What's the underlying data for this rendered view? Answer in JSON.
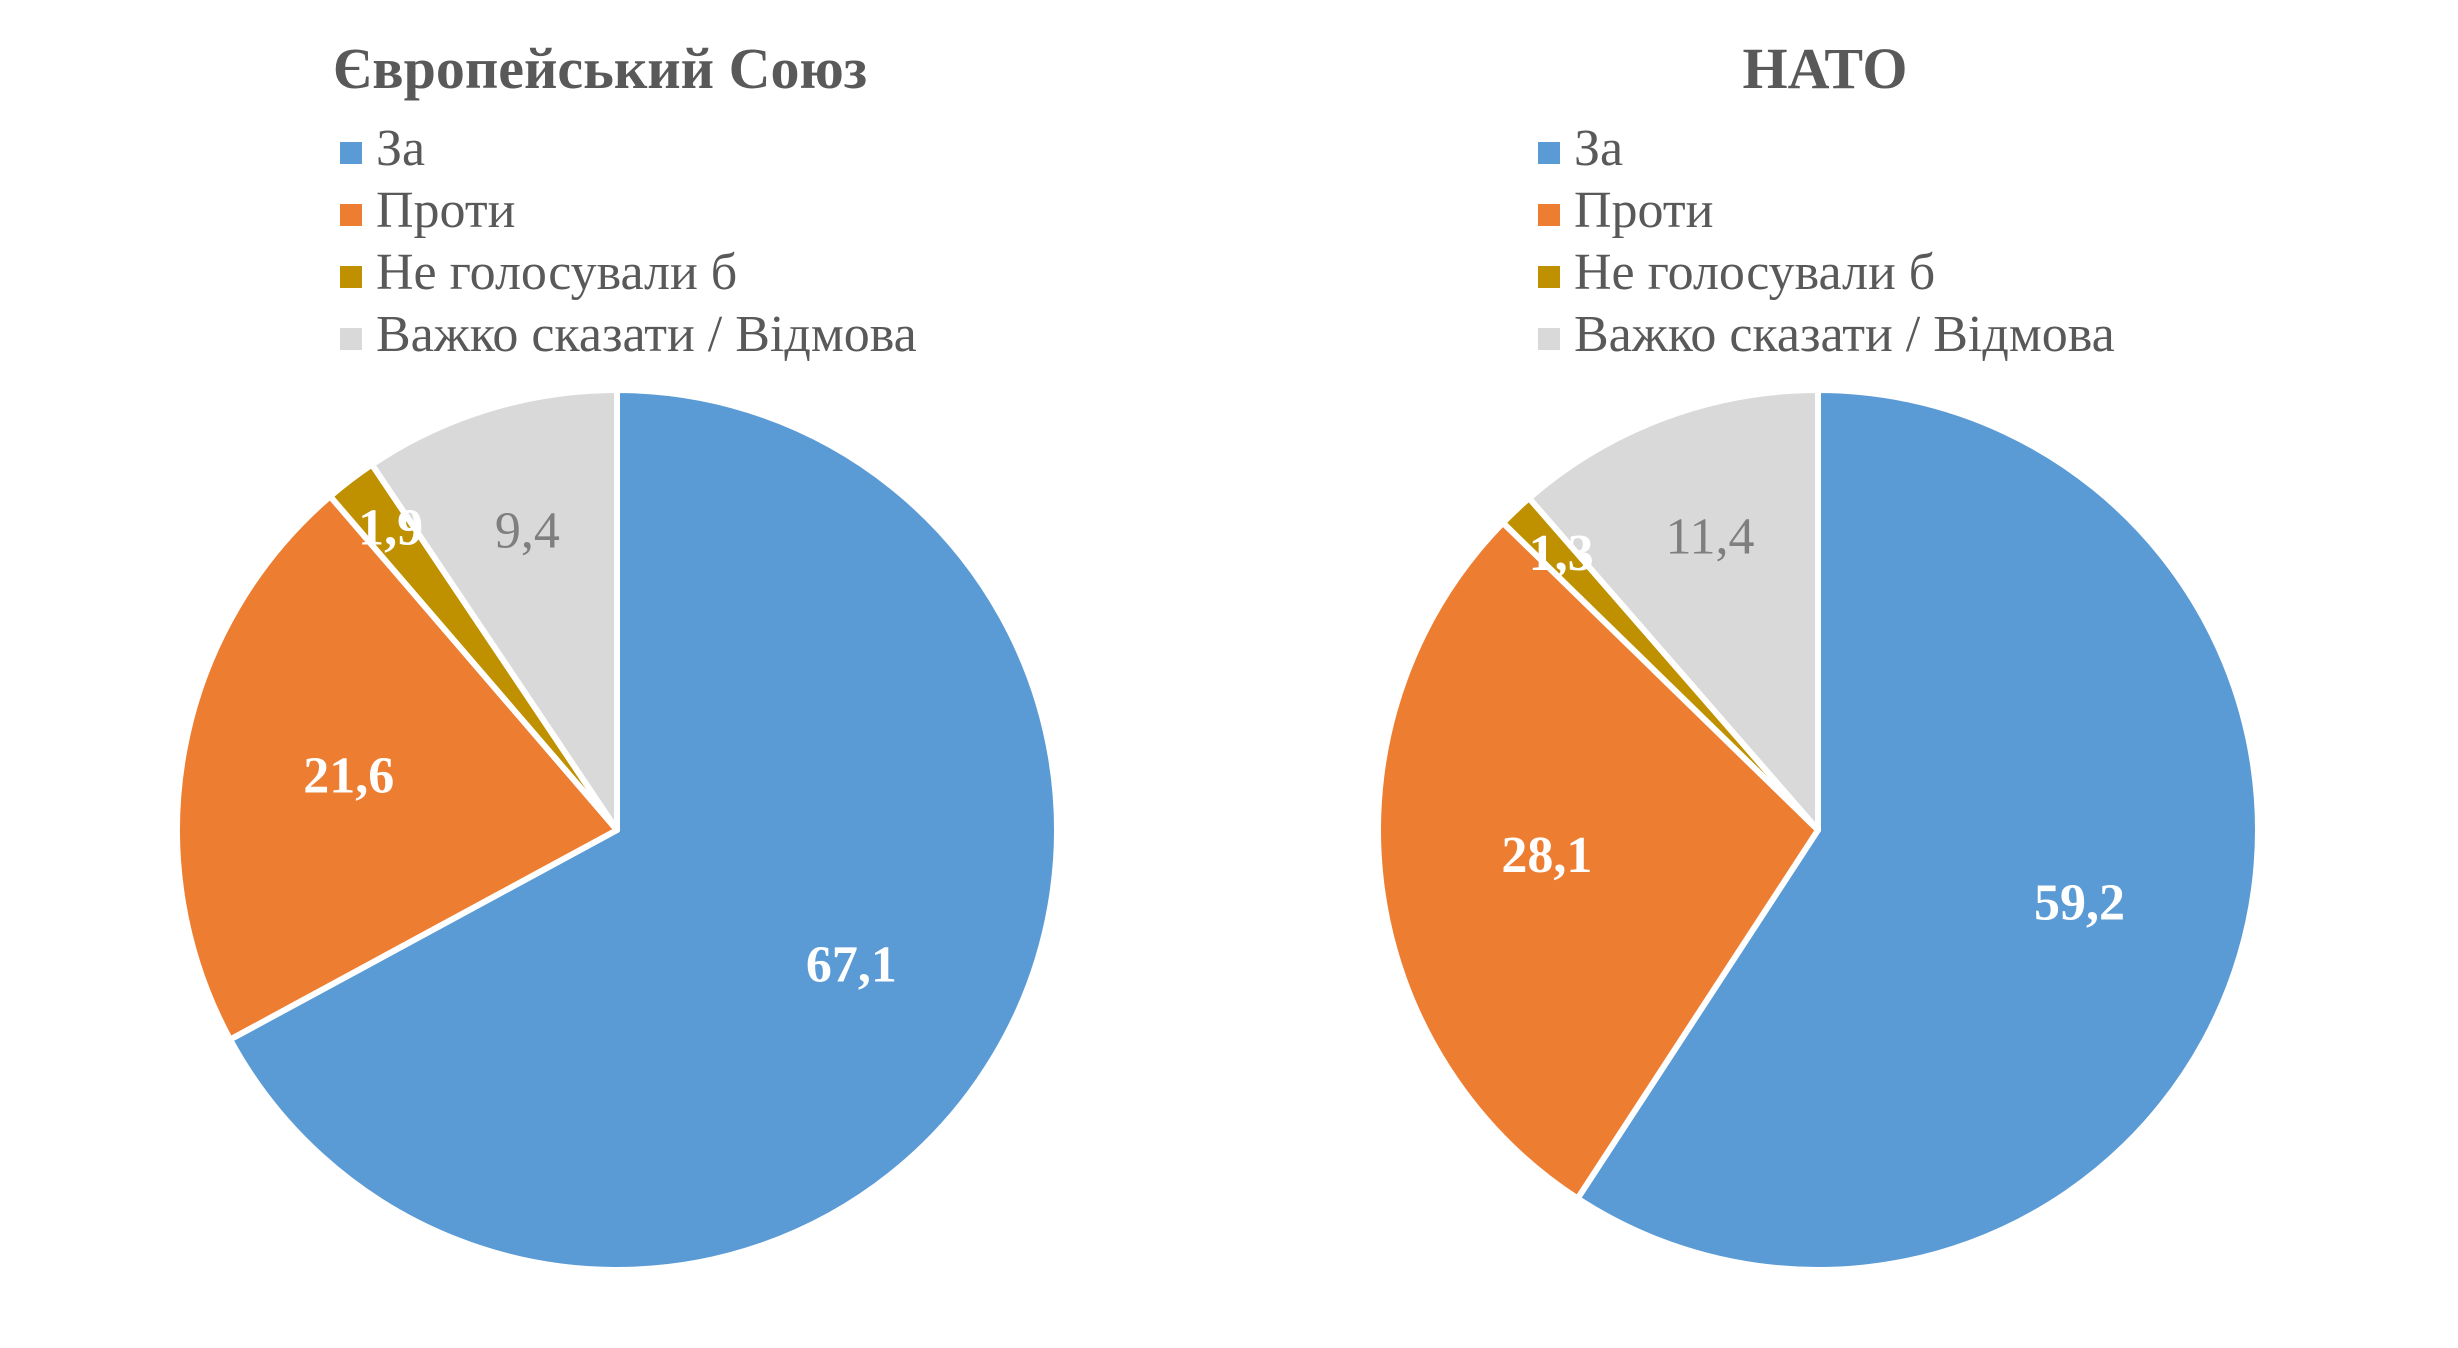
{
  "chart_data": [
    {
      "type": "pie",
      "title": "Європейський Союз",
      "categories": [
        "За",
        "Проти",
        "Не голосували б",
        "Важко сказати / Відмова"
      ],
      "values": [
        67.1,
        21.6,
        1.9,
        9.4
      ],
      "value_labels": [
        "67,1",
        "21,6",
        "1,9",
        "9,4"
      ],
      "colors": [
        "#5b9bd5",
        "#ed7d31",
        "#bf9000",
        "#d9d9d9"
      ],
      "legend_position": "top",
      "start_angle": "12 o'clock, clockwise"
    },
    {
      "type": "pie",
      "title": "НАТО",
      "categories": [
        "За",
        "Проти",
        "Не голосували б",
        "Важко сказати / Відмова"
      ],
      "values": [
        59.2,
        28.1,
        1.3,
        11.4
      ],
      "value_labels": [
        "59,2",
        "28,1",
        "1,3",
        "11,4"
      ],
      "colors": [
        "#5b9bd5",
        "#ed7d31",
        "#bf9000",
        "#d9d9d9"
      ],
      "legend_position": "top",
      "start_angle": "12 o'clock, clockwise"
    }
  ]
}
